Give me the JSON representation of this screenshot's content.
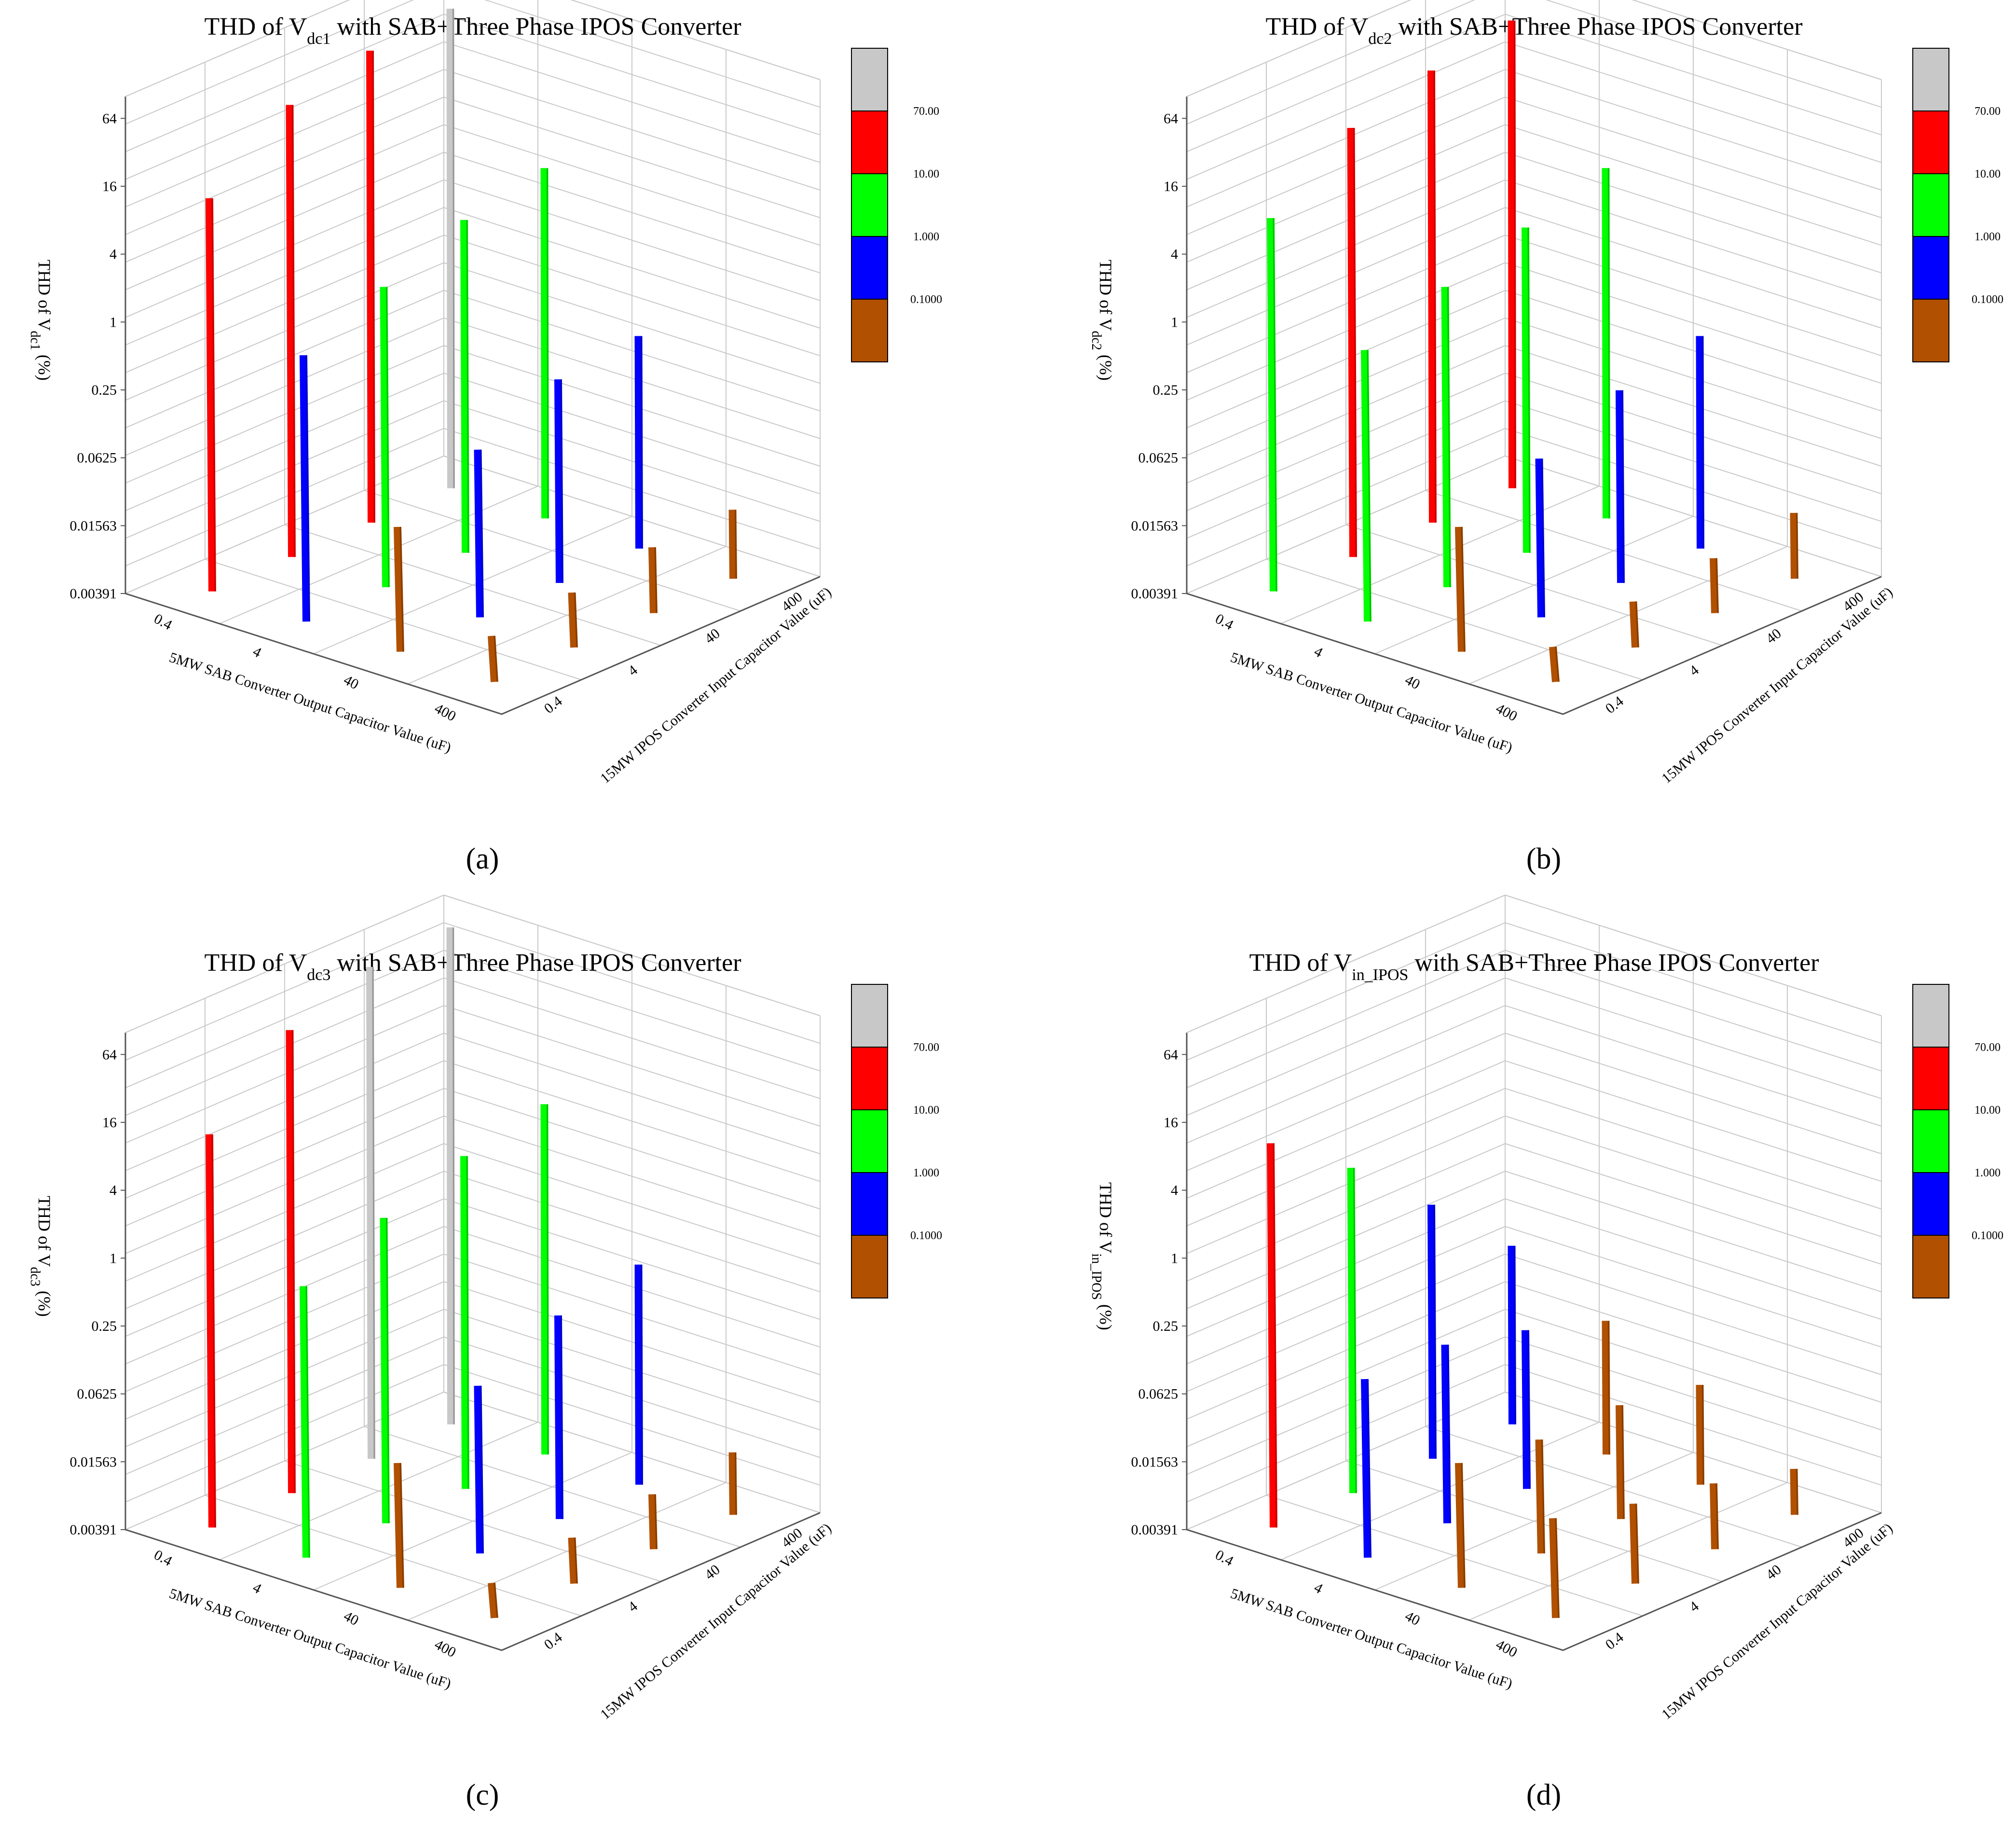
{
  "chart_data": [
    {
      "type": "bar3d",
      "panel": "(a)",
      "title": "THD of V",
      "title_sub": "dc1",
      "title_rest": " with SAB+Three Phase IPOS Converter",
      "zlabel": "THD of V",
      "zlabel_sub": "dc1",
      "zlabel_rest": " (%)",
      "xlabel": "5MW SAB Converter Output Capacitor Value (uF)",
      "ylabel": "15MW IPOS Converter Input Capacitor Value (uF)",
      "x_ticks": [
        "0.4",
        "4",
        "40",
        "400"
      ],
      "y_ticks": [
        "0.4",
        "4",
        "40",
        "400"
      ],
      "z_ticks": [
        "0.00391",
        "0.01563",
        "0.0625",
        "0.25",
        "1",
        "4",
        "16",
        "64"
      ],
      "values": [
        [
          12.0,
          40.0,
          60.0,
          70.0
        ],
        [
          0.9,
          1.8,
          3.5,
          5.0
        ],
        [
          0.05,
          0.12,
          0.25,
          0.3
        ],
        [
          0.01,
          0.012,
          0.015,
          0.016
        ]
      ]
    },
    {
      "type": "bar3d",
      "panel": "(b)",
      "title": "THD of V",
      "title_sub": "dc2",
      "title_rest": " with SAB+Three Phase IPOS Converter",
      "zlabel": "THD of V",
      "zlabel_sub": "dc2",
      "zlabel_rest": " (%)",
      "xlabel": "5MW SAB Converter Output Capacitor Value (uF)",
      "ylabel": "15MW IPOS Converter Input Capacitor Value (uF)",
      "x_ticks": [
        "0.4",
        "4",
        "40",
        "400"
      ],
      "y_ticks": [
        "0.4",
        "4",
        "40",
        "400"
      ],
      "z_ticks": [
        "0.00391",
        "0.01563",
        "0.0625",
        "0.25",
        "1",
        "4",
        "16",
        "64"
      ],
      "values": [
        [
          8.0,
          25.0,
          40.0,
          55.0
        ],
        [
          1.0,
          1.8,
          3.0,
          5.0
        ],
        [
          0.05,
          0.1,
          0.2,
          0.3
        ],
        [
          0.008,
          0.01,
          0.012,
          0.015
        ]
      ]
    },
    {
      "type": "bar3d",
      "panel": "(c)",
      "title": "THD of V",
      "title_sub": "dc3",
      "title_rest": " with SAB+Three Phase IPOS Converter",
      "zlabel": "THD of V",
      "zlabel_sub": "dc3",
      "zlabel_rest": " (%)",
      "xlabel": "5MW SAB Converter Output Capacitor Value (uF)",
      "ylabel": "15MW IPOS Converter Input Capacitor Value (uF)",
      "x_ticks": [
        "0.4",
        "4",
        "40",
        "400"
      ],
      "y_ticks": [
        "0.4",
        "4",
        "40",
        "400"
      ],
      "z_ticks": [
        "0.00391",
        "0.01563",
        "0.0625",
        "0.25",
        "1",
        "4",
        "16",
        "64"
      ],
      "values": [
        [
          12.0,
          50.0,
          90.0,
          100.0
        ],
        [
          1.0,
          2.0,
          3.5,
          5.0
        ],
        [
          0.05,
          0.12,
          0.25,
          0.35
        ],
        [
          0.008,
          0.01,
          0.012,
          0.014
        ]
      ]
    },
    {
      "type": "bar3d",
      "panel": "(d)",
      "title": "THD of V",
      "title_sub": "in_IPOS",
      "title_rest": " with SAB+Three Phase IPOS Converter",
      "zlabel": "THD of V",
      "zlabel_sub": "in_IPOS",
      "zlabel_rest": " (%)",
      "xlabel": "5MW SAB Converter Output Capacitor Value (uF)",
      "ylabel": "15MW IPOS Converter Input Capacitor Value (uF)",
      "x_ticks": [
        "0.4",
        "4",
        "40",
        "400"
      ],
      "y_ticks": [
        "0.4",
        "4",
        "40",
        "400"
      ],
      "z_ticks": [
        "0.00391",
        "0.01563",
        "0.0625",
        "0.25",
        "1",
        "4",
        "16",
        "64"
      ],
      "values": [
        [
          10.0,
          3.0,
          0.7,
          0.15
        ],
        [
          0.15,
          0.15,
          0.1,
          0.06
        ],
        [
          0.05,
          0.04,
          0.04,
          0.03
        ],
        [
          0.03,
          0.02,
          0.015,
          0.01
        ]
      ]
    }
  ],
  "legend": {
    "placement": "right",
    "bands": [
      {
        "color": "#c8c8c8",
        "label": ""
      },
      {
        "color": "#ff0000",
        "label": "70.00"
      },
      {
        "color": "#00ff00",
        "label": "10.00"
      },
      {
        "color": "#0000ff",
        "label": "1.000"
      },
      {
        "color": "#b05000",
        "label": "0.1000"
      }
    ]
  },
  "colors": {
    "gray": "#c8c8c8",
    "red": "#ff0000",
    "green": "#00ff00",
    "blue": "#0000ff",
    "brown": "#b05000"
  }
}
